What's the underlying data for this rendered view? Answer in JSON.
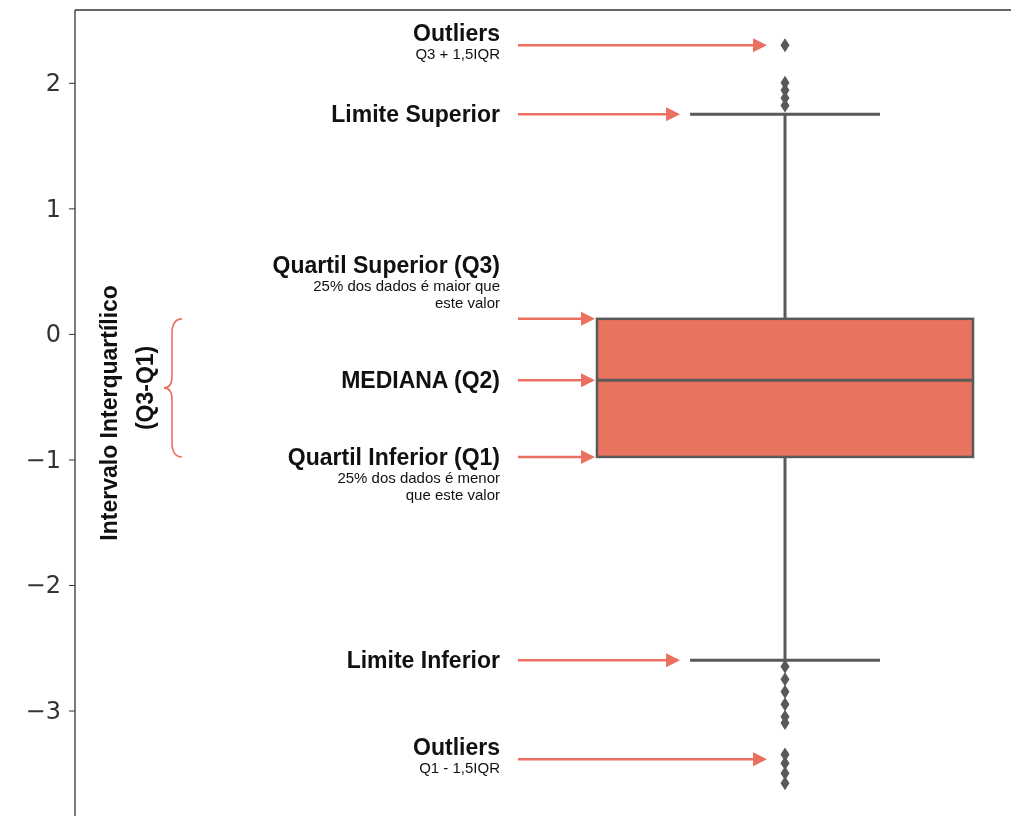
{
  "chart_data": {
    "type": "box",
    "categories": [
      null
    ],
    "ylim": [
      -3.84,
      2.58
    ],
    "yticks": [
      {
        "value": -3,
        "label": "−3"
      },
      {
        "value": -2,
        "label": "−2"
      },
      {
        "value": -1,
        "label": "−1"
      },
      0,
      1,
      2
    ],
    "tick_labels": "y",
    "marker": "diamond",
    "series": [
      {
        "color": "#e8735e",
        "boxes": [
          {
            "low": -2.6,
            "q1": -0.98,
            "median": -0.37,
            "q3": 0.12,
            "high": 1.75,
            "outliers": [
              2.3,
              2.0,
              1.94,
              1.88,
              1.82,
              -2.65,
              -2.75,
              -2.85,
              -2.95,
              -3.05,
              -3.1,
              -3.35,
              -3.42,
              -3.5,
              -3.58
            ]
          }
        ]
      }
    ],
    "annotations": [
      "Intervalo Interquartílico\n(Q3-Q1)",
      "Outliers",
      "Q3 + 1,5IQR",
      "Limite Superior",
      "Quartil Superior (Q3)",
      "25% dos dados é maior que\neste valor",
      "MEDIANA (Q2)",
      "Quartil Inferior (Q1)",
      "25% dos dados é menor\nque este valor",
      "Limite Inferior",
      "Outliers",
      "Q1 - 1,5IQR"
    ]
  }
}
